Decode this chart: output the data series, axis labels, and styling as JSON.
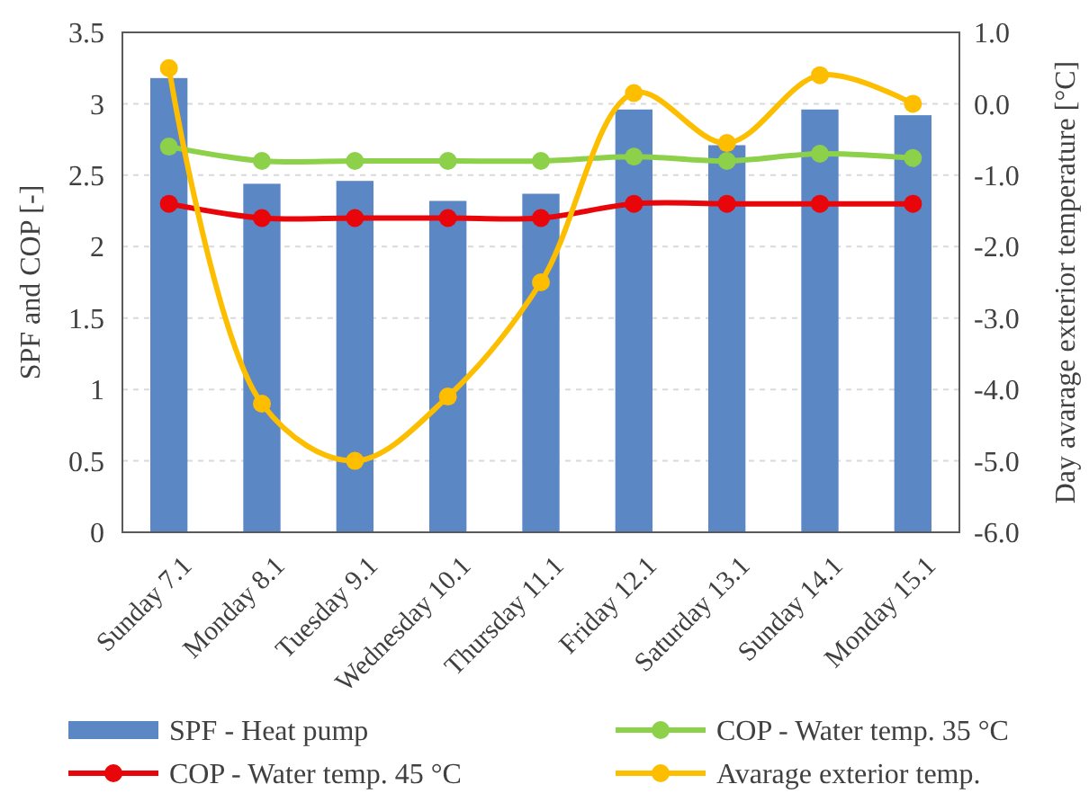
{
  "chart_data": {
    "type": "bar",
    "ylabel": "SPF and COP [-]",
    "y2label": "Day avarage exterior temperature [°C]",
    "categories": [
      "Sunday 7.1",
      "Monday 8.1",
      "Tuesday 9.1",
      "Wednesday 10.1",
      "Thursday 11.1",
      "Friday 12.1",
      "Saturday 13.1",
      "Sunday 14.1",
      "Monday 15.1"
    ],
    "series": [
      {
        "name": "SPF - Heat pump",
        "color": "#5b87c5",
        "values": [
          3.18,
          2.44,
          2.46,
          2.32,
          2.37,
          2.96,
          2.71,
          2.96,
          2.92
        ]
      },
      {
        "name": "COP - Water temp. 35 °C",
        "type": "line",
        "color": "#8dd14a",
        "marker": "circle",
        "values": [
          2.7,
          2.6,
          2.6,
          2.6,
          2.6,
          2.63,
          2.6,
          2.65,
          2.62
        ]
      },
      {
        "name": "COP - Water temp. 45 °C",
        "type": "line",
        "color": "#e8060a",
        "marker": "circle",
        "values": [
          2.3,
          2.2,
          2.2,
          2.2,
          2.2,
          2.3,
          2.3,
          2.3,
          2.3
        ]
      },
      {
        "name": "Avarage exterior temp.",
        "type": "line",
        "axis": "y2",
        "color": "#fdbe00",
        "marker": "circle",
        "values": [
          0.5,
          -4.2,
          -5.0,
          -4.1,
          -2.5,
          0.15,
          -0.55,
          0.4,
          0.0
        ]
      }
    ],
    "ylim": [
      0,
      3.5
    ],
    "yticks": [
      0,
      0.5,
      1,
      1.5,
      2,
      2.5,
      3,
      3.5
    ],
    "y2lim": [
      -6,
      1
    ],
    "y2ticks": [
      {
        "value": -6,
        "label": "-6.0"
      },
      {
        "value": -5,
        "label": "-5.0"
      },
      {
        "value": -4,
        "label": "-4.0"
      },
      {
        "value": -3,
        "label": "-3.0"
      },
      {
        "value": -2,
        "label": "-2.0"
      },
      {
        "value": -1,
        "label": "-1.0"
      },
      {
        "value": 0,
        "label": "0.0"
      },
      {
        "value": 1,
        "label": "1.0"
      }
    ],
    "grid": "y",
    "legend": "bottom"
  }
}
